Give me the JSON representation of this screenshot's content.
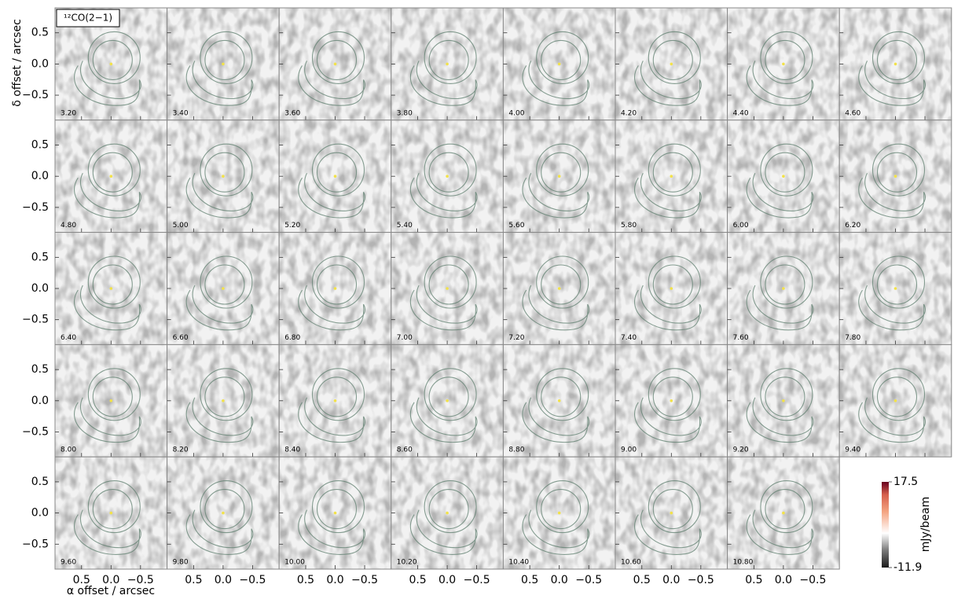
{
  "chart_data": {
    "type": "channel_map",
    "line_label": "¹²CO(2−1)",
    "x_label": "α offset / arcsec",
    "y_label": "δ offset / arcsec",
    "categories": [
      "3.20",
      "3.40",
      "3.60",
      "3.80",
      "4.00",
      "4.20",
      "4.40",
      "4.60",
      "4.80",
      "5.00",
      "5.20",
      "5.40",
      "5.60",
      "5.80",
      "6.00",
      "6.20",
      "6.40",
      "6.60",
      "6.80",
      "7.00",
      "7.20",
      "7.40",
      "7.60",
      "7.80",
      "8.00",
      "8.20",
      "8.40",
      "8.60",
      "8.80",
      "9.00",
      "9.20",
      "9.40",
      "9.60",
      "9.80",
      "10.00",
      "10.20",
      "10.40",
      "10.60",
      "10.80"
    ],
    "xlim": [
      0.95,
      -0.95
    ],
    "ylim": [
      -0.9,
      0.9
    ],
    "xticks": [
      {
        "value": 0.5,
        "label": "0.5"
      },
      {
        "value": 0,
        "label": "0.0"
      },
      {
        "value": -0.5,
        "label": "−0.5"
      }
    ],
    "yticks": [
      {
        "value": 0.5,
        "label": "0.5"
      },
      {
        "value": 0,
        "label": "0.0"
      },
      {
        "value": -0.5,
        "label": "−0.5"
      }
    ],
    "colorbar": {
      "label": "mJy/beam",
      "lim": [
        -11.9,
        17.5
      ],
      "ticks": [
        17.5,
        -11.9
      ]
    }
  }
}
